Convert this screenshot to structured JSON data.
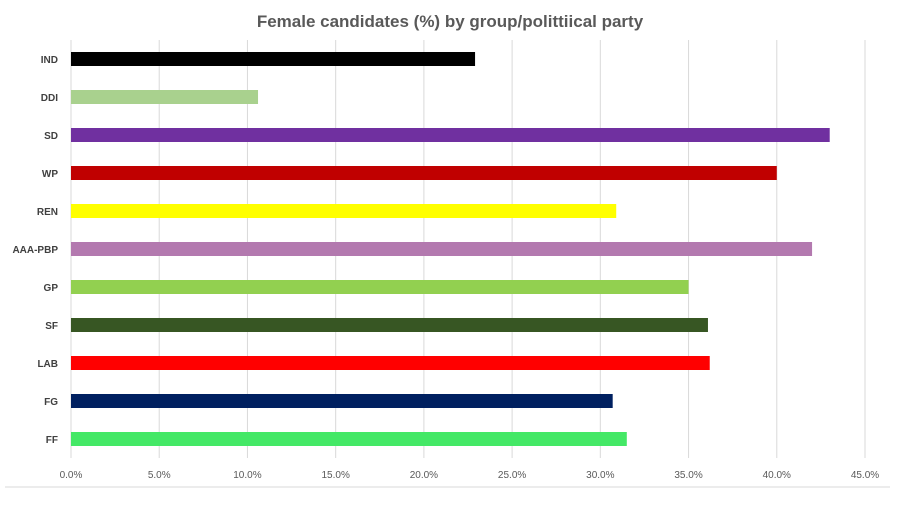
{
  "chart_data": {
    "type": "bar",
    "orientation": "horizontal",
    "title": "Female candidates (%) by group/polittiical party",
    "xlabel": "",
    "ylabel": "",
    "categories": [
      "IND",
      "DDI",
      "SD",
      "WP",
      "REN",
      "AAA-PBP",
      "GP",
      "SF",
      "LAB",
      "FG",
      "FF"
    ],
    "values": [
      22.9,
      10.6,
      43.0,
      40.0,
      30.9,
      42.0,
      35.0,
      36.1,
      36.2,
      30.7,
      31.5
    ],
    "colors": [
      "#000000",
      "#a9d18e",
      "#7030a0",
      "#c00000",
      "#ffff00",
      "#b379af",
      "#92d050",
      "#375623",
      "#ff0000",
      "#002060",
      "#44e866"
    ],
    "xlim": [
      0,
      45
    ],
    "xticks": [
      0,
      5,
      10,
      15,
      20,
      25,
      30,
      35,
      40,
      45
    ],
    "xtick_labels": [
      "0.0%",
      "5.0%",
      "10.0%",
      "15.0%",
      "20.0%",
      "25.0%",
      "30.0%",
      "35.0%",
      "40.0%",
      "45.0%"
    ],
    "grid": true,
    "legend": "none"
  }
}
